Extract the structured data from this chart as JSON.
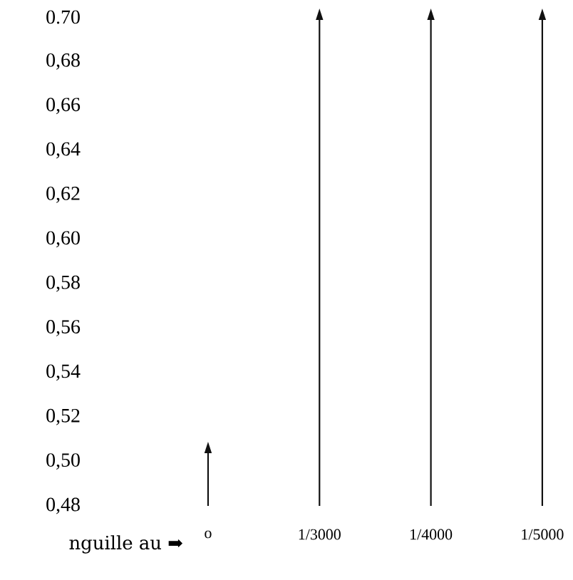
{
  "chart_data": {
    "type": "bar",
    "xlabel": "nguille au ➡",
    "categories": [
      "o",
      "1/3000",
      "1/4000",
      "1/5000"
    ],
    "values": [
      0.505,
      0.7,
      0.7,
      0.7
    ],
    "color": "#111111",
    "ylim": [
      0.48,
      0.7
    ],
    "yticks": [
      {
        "value": 0.48,
        "label": "0,48"
      },
      {
        "value": 0.5,
        "label": "0,50"
      },
      {
        "value": 0.52,
        "label": "0,52"
      },
      {
        "value": 0.54,
        "label": "0,54"
      },
      {
        "value": 0.56,
        "label": "0,56"
      },
      {
        "value": 0.58,
        "label": "0,58"
      },
      {
        "value": 0.6,
        "label": "0,60"
      },
      {
        "value": 0.62,
        "label": "0,62"
      },
      {
        "value": 0.64,
        "label": "0,64"
      },
      {
        "value": 0.66,
        "label": "0,66"
      },
      {
        "value": 0.68,
        "label": "0,68"
      },
      {
        "value": 0.7,
        "label": "0.70"
      }
    ]
  }
}
